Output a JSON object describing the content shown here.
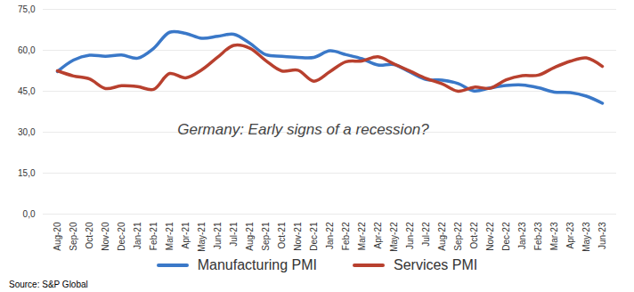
{
  "chart_data": {
    "type": "line",
    "annotation": "Germany: Early signs of a recession?",
    "source": "Source: S&P Global",
    "categories": [
      "Aug-20",
      "Sep-20",
      "Oct-20",
      "Nov-20",
      "Dec-20",
      "Jan-21",
      "Feb-21",
      "Mar-21",
      "Apr-21",
      "May-21",
      "Jun-21",
      "Jul-21",
      "Aug-21",
      "Sep-21",
      "Oct-21",
      "Nov-21",
      "Dec-21",
      "Jan-22",
      "Feb-22",
      "Mar-22",
      "Apr-22",
      "May-22",
      "Jun-22",
      "Jul-22",
      "Aug-22",
      "Sep-22",
      "Oct-22",
      "Nov-22",
      "Dec-22",
      "Jan-23",
      "Feb-23",
      "Mar-23",
      "Apr-23",
      "May-23",
      "Jun-23"
    ],
    "series": [
      {
        "name": "Manufacturing PMI",
        "color": "#3a78c8",
        "values": [
          52.2,
          56.4,
          58.2,
          57.8,
          58.3,
          57.1,
          60.7,
          66.6,
          66.2,
          64.4,
          65.1,
          65.9,
          62.6,
          58.4,
          57.8,
          57.4,
          57.4,
          59.8,
          58.4,
          56.9,
          54.6,
          54.8,
          52.0,
          49.3,
          49.1,
          47.8,
          45.1,
          46.2,
          47.1,
          47.3,
          46.3,
          44.7,
          44.5,
          43.2,
          40.6
        ]
      },
      {
        "name": "Services PMI",
        "color": "#b8402e",
        "values": [
          52.5,
          50.6,
          49.5,
          46.0,
          47.0,
          46.7,
          45.7,
          51.5,
          49.9,
          52.8,
          57.5,
          61.8,
          60.8,
          56.2,
          52.4,
          52.7,
          48.7,
          52.2,
          55.8,
          56.1,
          57.6,
          55.0,
          52.4,
          49.7,
          47.7,
          45.0,
          46.5,
          46.1,
          49.2,
          50.7,
          50.9,
          53.7,
          56.0,
          57.2,
          54.1
        ]
      }
    ],
    "ylim": [
      0,
      75
    ],
    "yticks": [
      {
        "value": 0,
        "label": "0,0"
      },
      {
        "value": 15,
        "label": "15,0"
      },
      {
        "value": 30,
        "label": "30,0"
      },
      {
        "value": 45,
        "label": "45,0"
      },
      {
        "value": 60,
        "label": "60,0"
      },
      {
        "value": 75,
        "label": "75,0"
      }
    ],
    "grid": true,
    "legend": "bottom"
  }
}
